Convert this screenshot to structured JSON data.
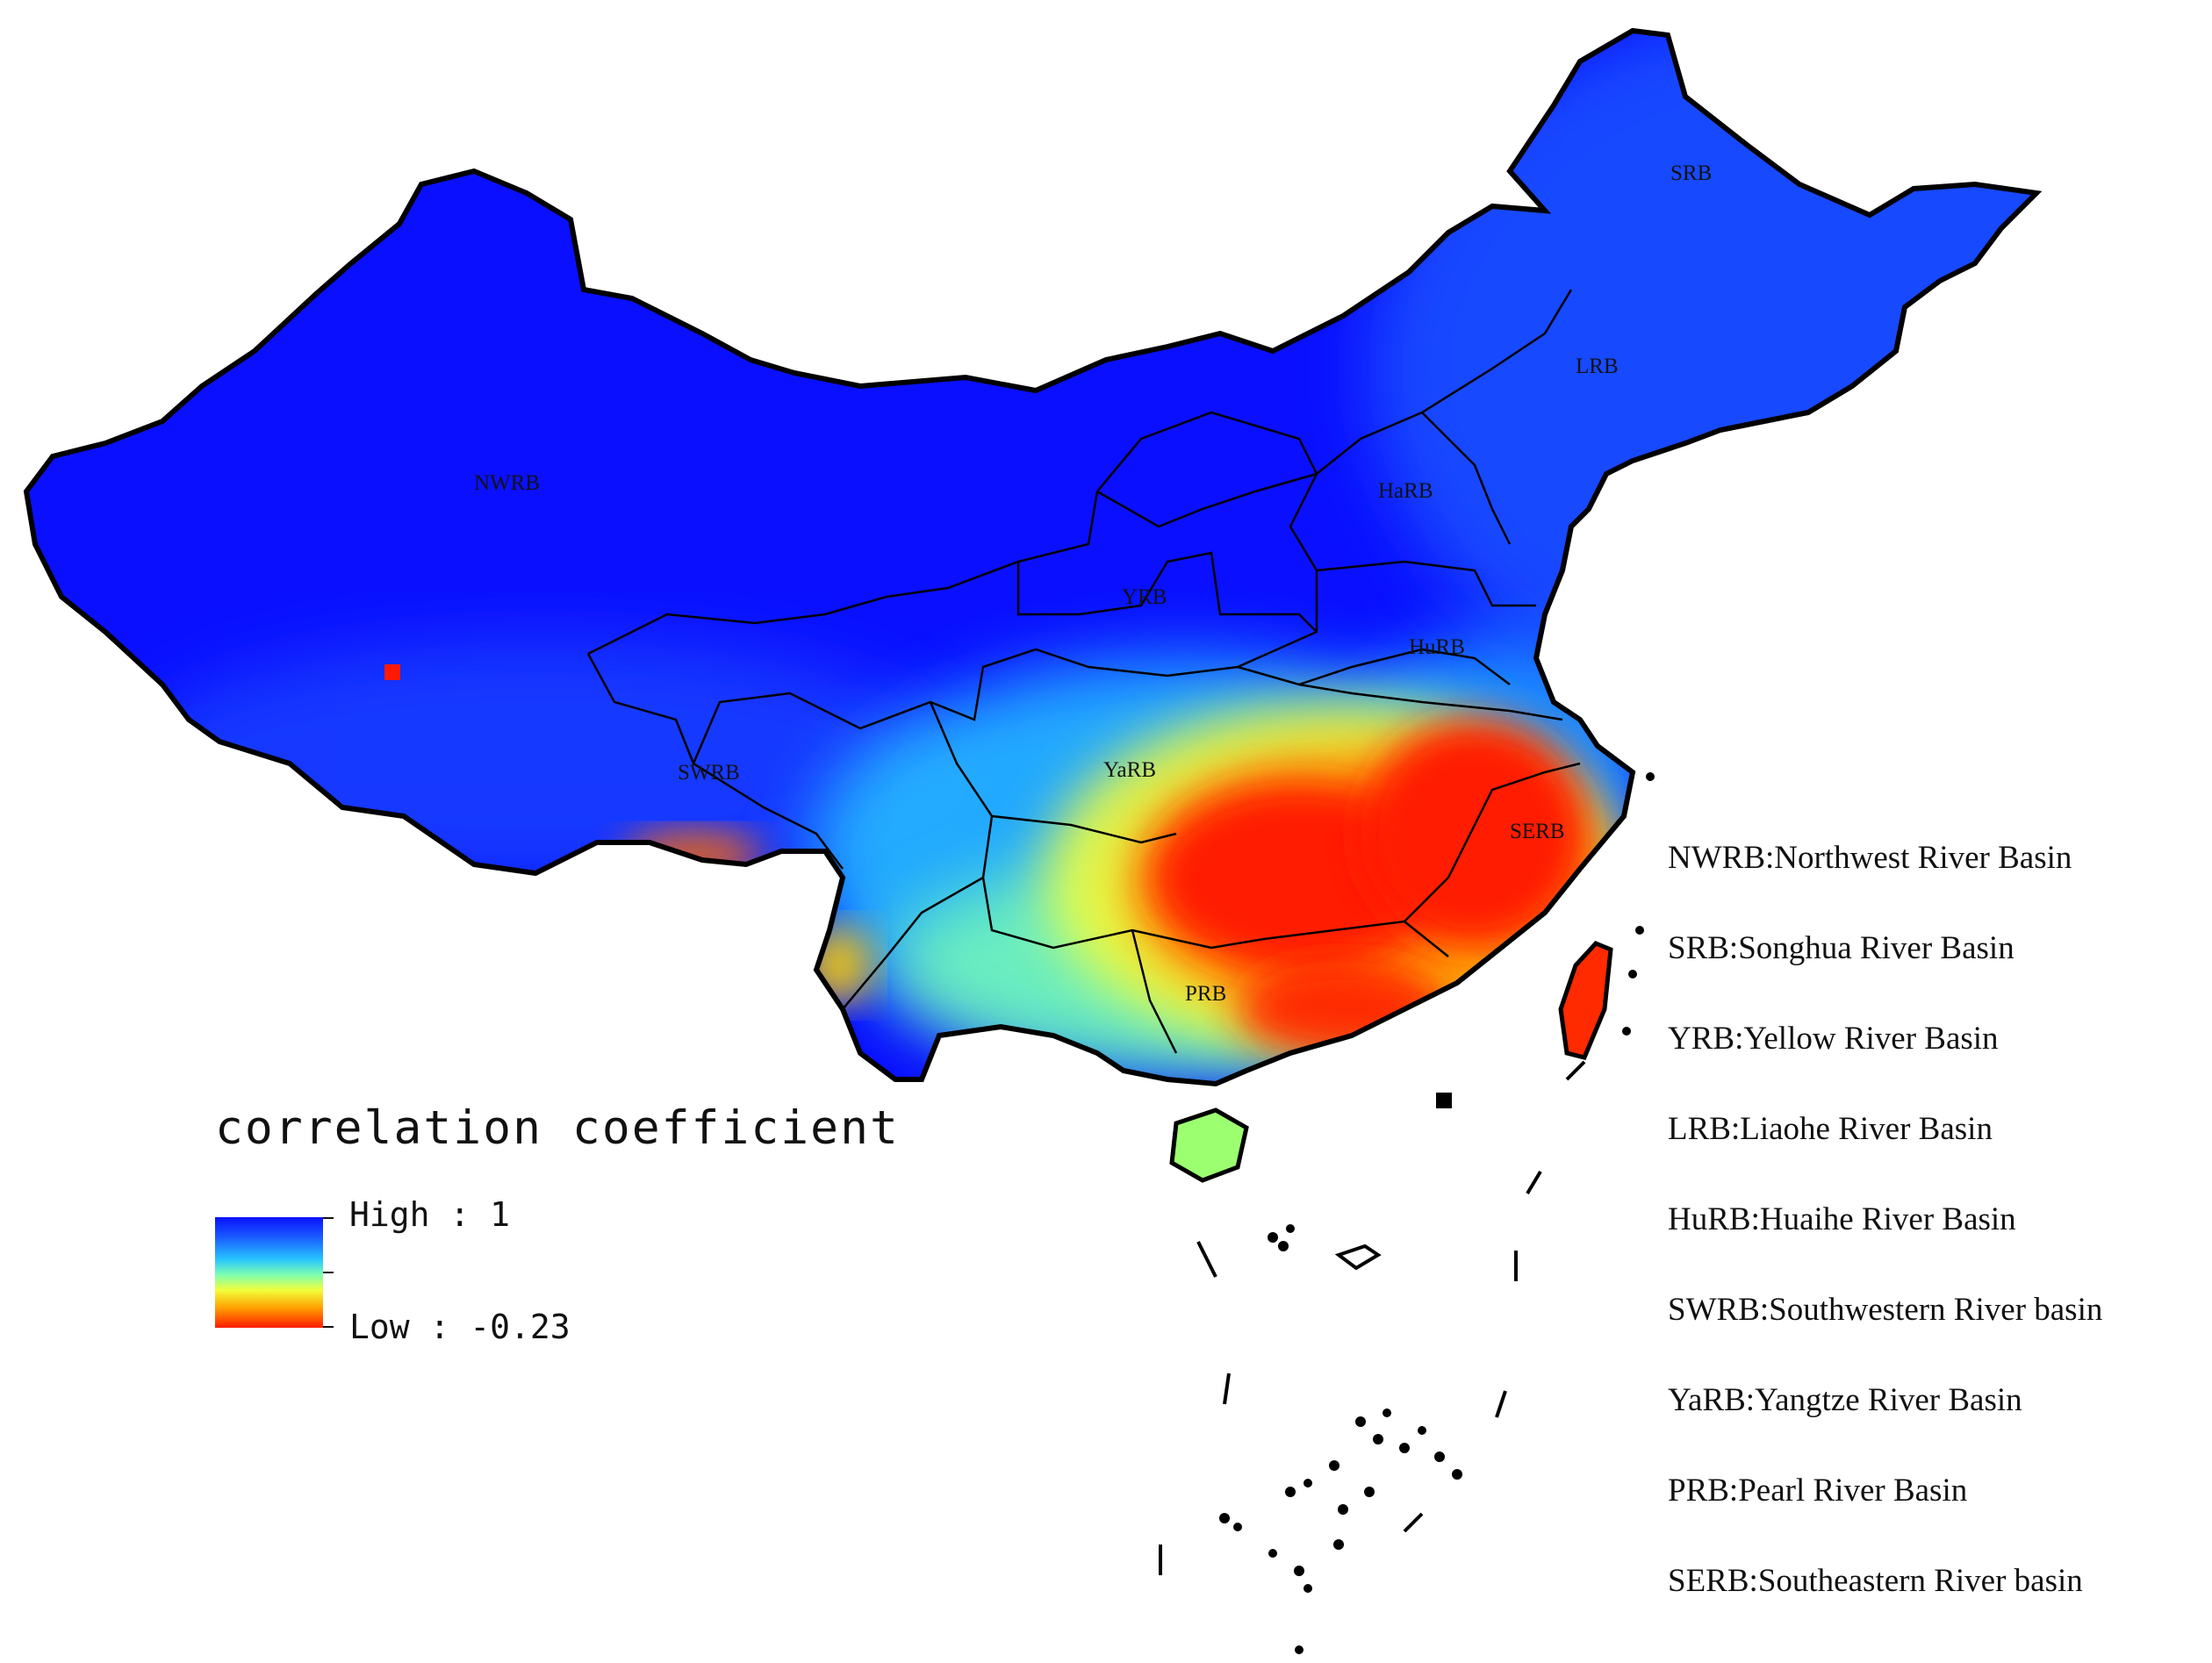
{
  "basin_labels": [
    {
      "id": "nwrb",
      "text": "NWRB"
    },
    {
      "id": "srb",
      "text": "SRB"
    },
    {
      "id": "lrb",
      "text": "LRB"
    },
    {
      "id": "harb",
      "text": "HaRB"
    },
    {
      "id": "yrb",
      "text": "YRB"
    },
    {
      "id": "hurb",
      "text": "HuRB"
    },
    {
      "id": "swrb",
      "text": "SWRB"
    },
    {
      "id": "yarb",
      "text": "YaRB"
    },
    {
      "id": "serb",
      "text": "SERB"
    },
    {
      "id": "prb",
      "text": "PRB"
    }
  ],
  "legend": {
    "title": "correlation coefficient",
    "high_label": "High : 1",
    "low_label": "Low : -0.23",
    "high_value": 1,
    "low_value": -0.23,
    "colors": [
      "#0a10ff",
      "#1a5bff",
      "#27c4ff",
      "#7dffb0",
      "#f2ff3c",
      "#ffa000",
      "#ff1a00"
    ]
  },
  "basin_key": [
    "NWRB:Northwest River Basin",
    "SRB:Songhua River Basin",
    "YRB:Yellow River Basin",
    "LRB:Liaohe River Basin",
    "HuRB:Huaihe River Basin",
    "SWRB:Southwestern River basin",
    "YaRB:Yangtze River Basin",
    "PRB:Pearl River Basin",
    "SERB:Southeastern River basin"
  ]
}
